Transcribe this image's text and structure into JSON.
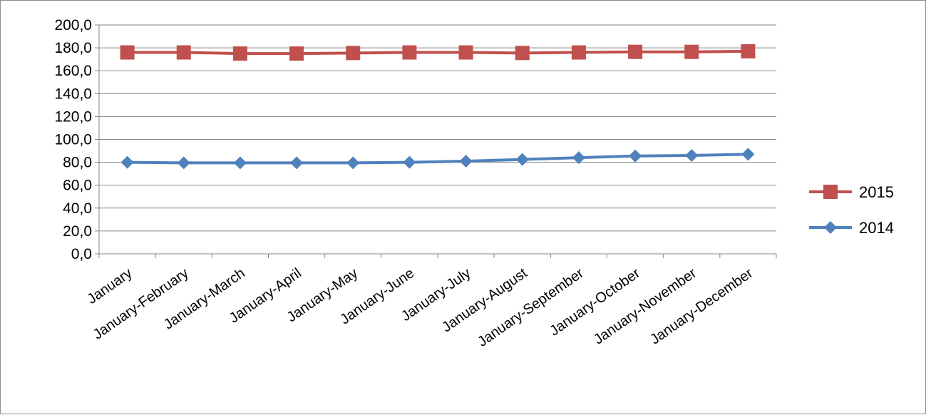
{
  "chart_data": {
    "type": "line",
    "title": "",
    "xlabel": "",
    "ylabel": "",
    "ylim": [
      0,
      200
    ],
    "y_ticks": [
      "0,0",
      "20,0",
      "40,0",
      "60,0",
      "80,0",
      "100,0",
      "120,0",
      "140,0",
      "160,0",
      "180,0",
      "200,0"
    ],
    "y_tick_values": [
      0,
      20,
      40,
      60,
      80,
      100,
      120,
      140,
      160,
      180,
      200
    ],
    "grid": true,
    "legend_position": "right",
    "categories": [
      "January",
      "January-February",
      "January-March",
      "January-April",
      "January-May",
      "January-June",
      "January-July",
      "January-August",
      "January-September",
      "January-October",
      "January-November",
      "January-December"
    ],
    "series": [
      {
        "name": "2015",
        "marker": "square",
        "color": "#C0504D",
        "values": [
          176.0,
          176.0,
          175.0,
          175.0,
          175.5,
          176.0,
          176.0,
          175.5,
          176.0,
          176.5,
          176.5,
          177.0
        ]
      },
      {
        "name": "2014",
        "marker": "diamond",
        "color": "#4F81BD",
        "values": [
          80.0,
          79.5,
          79.5,
          79.5,
          79.5,
          80.0,
          81.0,
          82.5,
          84.0,
          85.5,
          86.0,
          87.0
        ]
      }
    ]
  }
}
